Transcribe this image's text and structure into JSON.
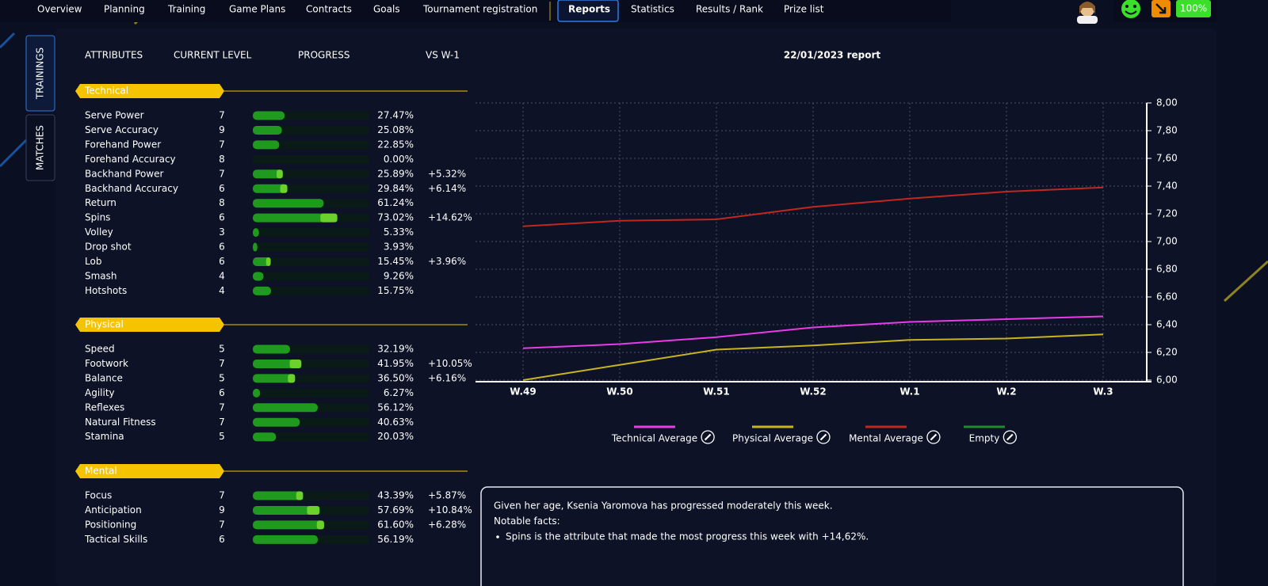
{
  "nav": {
    "tabs": [
      "Overview",
      "Planning",
      "Training",
      "Game Plans",
      "Contracts",
      "Goals",
      "Tournament registration",
      "Reports",
      "Statistics",
      "Results / Rank",
      "Prize list"
    ],
    "active": 7
  },
  "side_tabs": [
    "TRAININGS",
    "MATCHES"
  ],
  "status": "100%",
  "columns": [
    "ATTRIBUTES",
    "CURRENT LEVEL",
    "PROGRESS",
    "VS W-1"
  ],
  "groups": [
    {
      "name": "Technical",
      "rows": [
        {
          "name": "Serve Power",
          "level": 7,
          "progress": 27.47,
          "progress_label": "27.47%"
        },
        {
          "name": "Serve Accuracy",
          "level": 9,
          "progress": 25.08,
          "progress_label": "25.08%"
        },
        {
          "name": "Forehand Power",
          "level": 7,
          "progress": 22.85,
          "progress_label": "22.85%"
        },
        {
          "name": "Forehand Accuracy",
          "level": 8,
          "progress": 0,
          "progress_label": "0.00%"
        },
        {
          "name": "Backhand Power",
          "level": 7,
          "progress": 25.89,
          "progress_label": "25.89%",
          "delta": 5.32,
          "delta_label": "+5.32%"
        },
        {
          "name": "Backhand Accuracy",
          "level": 6,
          "progress": 29.84,
          "progress_label": "29.84%",
          "delta": 6.14,
          "delta_label": "+6.14%"
        },
        {
          "name": "Return",
          "level": 8,
          "progress": 61.24,
          "progress_label": "61.24%"
        },
        {
          "name": "Spins",
          "level": 6,
          "progress": 73.02,
          "progress_label": "73.02%",
          "delta": 14.62,
          "delta_label": "+14.62%"
        },
        {
          "name": "Volley",
          "level": 3,
          "level_color": "#e53935",
          "progress": 5.33,
          "progress_label": "5.33%"
        },
        {
          "name": "Drop shot",
          "level": 6,
          "progress": 3.93,
          "progress_label": "3.93%"
        },
        {
          "name": "Lob",
          "level": 6,
          "progress": 15.45,
          "progress_label": "15.45%",
          "delta": 3.96,
          "delta_label": "+3.96%"
        },
        {
          "name": "Smash",
          "level": 4,
          "progress": 9.26,
          "progress_label": "9.26%"
        },
        {
          "name": "Hotshots",
          "level": 4,
          "progress": 15.75,
          "progress_label": "15.75%"
        }
      ]
    },
    {
      "name": "Physical",
      "rows": [
        {
          "name": "Speed",
          "level": 5,
          "progress": 32.19,
          "progress_label": "32.19%"
        },
        {
          "name": "Footwork",
          "level": 7,
          "progress": 41.95,
          "progress_label": "41.95%",
          "delta": 10.05,
          "delta_label": "+10.05%"
        },
        {
          "name": "Balance",
          "level": 5,
          "progress": 36.5,
          "progress_label": "36.50%",
          "delta": 6.16,
          "delta_label": "+6.16%"
        },
        {
          "name": "Agility",
          "level": 6,
          "progress": 6.27,
          "progress_label": "6.27%"
        },
        {
          "name": "Reflexes",
          "level": 7,
          "progress": 56.12,
          "progress_label": "56.12%"
        },
        {
          "name": "Natural Fitness",
          "level": 7,
          "progress": 40.63,
          "progress_label": "40.63%"
        },
        {
          "name": "Stamina",
          "level": 5,
          "progress": 20.03,
          "progress_label": "20.03%"
        }
      ]
    },
    {
      "name": "Mental",
      "rows": [
        {
          "name": "Focus",
          "level": 7,
          "progress": 43.39,
          "progress_label": "43.39%",
          "delta": 5.87,
          "delta_label": "+5.87%"
        },
        {
          "name": "Anticipation",
          "level": 9,
          "progress": 57.69,
          "progress_label": "57.69%",
          "delta": 10.84,
          "delta_label": "+10.84%"
        },
        {
          "name": "Positioning",
          "level": 7,
          "progress": 61.6,
          "progress_label": "61.60%",
          "delta": 6.28,
          "delta_label": "+6.28%"
        },
        {
          "name": "Tactical Skills",
          "level": 6,
          "progress": 56.19,
          "progress_label": "56.19%"
        }
      ]
    }
  ],
  "chart_data": {
    "type": "line",
    "title": "22/01/2023 report",
    "categories": [
      "W.49",
      "W.50",
      "W.51",
      "W.52",
      "W.1",
      "W.2",
      "W.3"
    ],
    "series": [
      {
        "name": "Technical Average",
        "color": "#e83ce8",
        "values": [
          6.23,
          6.26,
          6.31,
          6.38,
          6.42,
          6.44,
          6.46
        ]
      },
      {
        "name": "Physical Average",
        "color": "#c8b41e",
        "values": [
          6.0,
          6.11,
          6.22,
          6.25,
          6.29,
          6.3,
          6.33
        ]
      },
      {
        "name": "Mental Average",
        "color": "#c0281e",
        "values": [
          7.11,
          7.15,
          7.16,
          7.25,
          7.31,
          7.36,
          7.39
        ]
      },
      {
        "name": "Empty",
        "color": "#1e8c28",
        "values": [
          null,
          null,
          null,
          null,
          null,
          null,
          null
        ]
      }
    ],
    "ylim": [
      6,
      8
    ],
    "yticks": [
      {
        "value": 6,
        "label": "6,00"
      },
      {
        "value": 6.2,
        "label": "6,20"
      },
      {
        "value": 6.4,
        "label": "6,40"
      },
      {
        "value": 6.6,
        "label": "6,60"
      },
      {
        "value": 6.8,
        "label": "6,80"
      },
      {
        "value": 7,
        "label": "7,00"
      },
      {
        "value": 7.2,
        "label": "7,20"
      },
      {
        "value": 7.4,
        "label": "7,40"
      },
      {
        "value": 7.6,
        "label": "7,60"
      },
      {
        "value": 7.8,
        "label": "7,80"
      },
      {
        "value": 8,
        "label": "8,00"
      }
    ],
    "grid": true,
    "y_axis_side": "right"
  },
  "summary": {
    "lines": [
      "Given her age, Ksenia Yaromova has progressed moderately this week.",
      "Notable facts:"
    ],
    "bullets": [
      "Spins is the attribute that made the most progress this week with +14,62%."
    ]
  }
}
